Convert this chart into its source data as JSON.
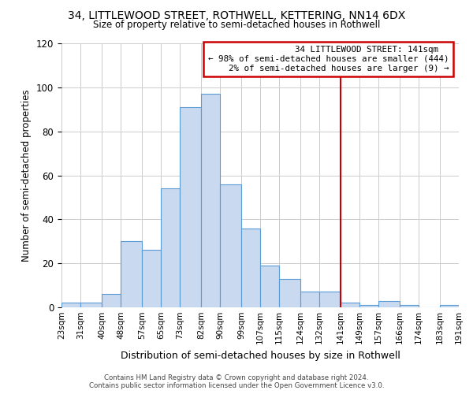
{
  "title": "34, LITTLEWOOD STREET, ROTHWELL, KETTERING, NN14 6DX",
  "subtitle": "Size of property relative to semi-detached houses in Rothwell",
  "xlabel": "Distribution of semi-detached houses by size in Rothwell",
  "ylabel": "Number of semi-detached properties",
  "footer_line1": "Contains HM Land Registry data © Crown copyright and database right 2024.",
  "footer_line2": "Contains public sector information licensed under the Open Government Licence v3.0.",
  "bin_labels": [
    "23sqm",
    "31sqm",
    "40sqm",
    "48sqm",
    "57sqm",
    "65sqm",
    "73sqm",
    "82sqm",
    "90sqm",
    "99sqm",
    "107sqm",
    "115sqm",
    "124sqm",
    "132sqm",
    "141sqm",
    "149sqm",
    "157sqm",
    "166sqm",
    "174sqm",
    "183sqm",
    "191sqm"
  ],
  "bin_edges": [
    23,
    31,
    40,
    48,
    57,
    65,
    73,
    82,
    90,
    99,
    107,
    115,
    124,
    132,
    141,
    149,
    157,
    166,
    174,
    183,
    191
  ],
  "bar_heights": [
    2,
    2,
    6,
    30,
    26,
    54,
    91,
    97,
    56,
    36,
    19,
    13,
    7,
    7,
    2,
    1,
    3,
    1,
    0,
    1
  ],
  "bar_color": "#c9d9f0",
  "bar_edge_color": "#5b9bd5",
  "property_size": 141,
  "property_label": "34 LITTLEWOOD STREET: 141sqm",
  "pct_smaller": 98,
  "n_smaller": 444,
  "pct_larger": 2,
  "n_larger": 9,
  "vline_color": "#cc0000",
  "annotation_box_edge_color": "#cc0000",
  "ylim": [
    0,
    120
  ],
  "yticks": [
    0,
    20,
    40,
    60,
    80,
    100,
    120
  ],
  "grid_color": "#cccccc",
  "background_color": "#ffffff"
}
